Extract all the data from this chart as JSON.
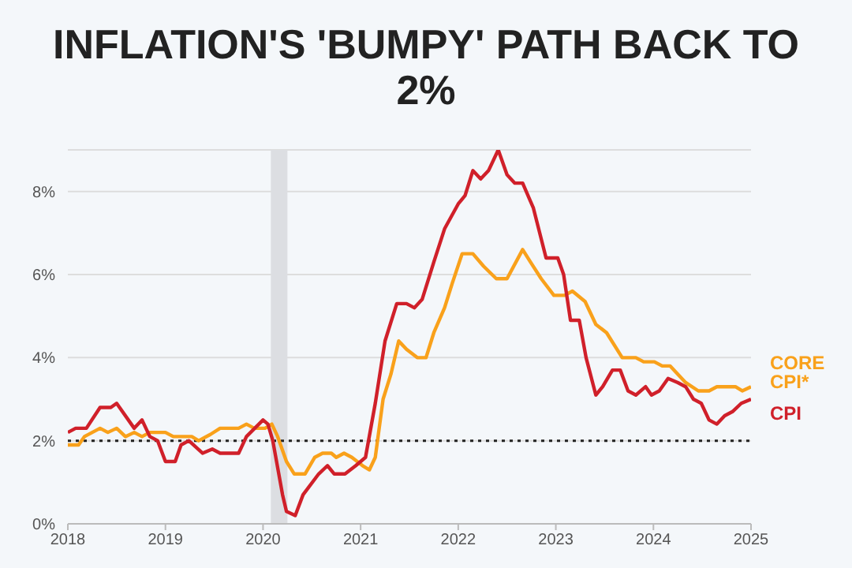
{
  "chart_data": {
    "type": "line",
    "title": "INFLATION'S 'BUMPY' PATH BACK TO 2%",
    "series": [
      {
        "name": "CORE CPI*",
        "color": "#f9a11b",
        "x": [
          2018.0,
          2018.11,
          2018.17,
          2018.33,
          2018.41,
          2018.5,
          2018.59,
          2018.68,
          2018.76,
          2018.84,
          2019.0,
          2019.08,
          2019.27,
          2019.34,
          2019.46,
          2019.56,
          2019.75,
          2019.83,
          2019.91,
          2020.02,
          2020.09,
          2020.15,
          2020.24,
          2020.32,
          2020.43,
          2020.53,
          2020.61,
          2020.7,
          2020.75,
          2020.83,
          2020.91,
          2021.02,
          2021.09,
          2021.15,
          2021.23,
          2021.31,
          2021.39,
          2021.47,
          2021.58,
          2021.67,
          2021.75,
          2021.86,
          2021.94,
          2022.04,
          2022.15,
          2022.26,
          2022.39,
          2022.5,
          2022.66,
          2022.74,
          2022.85,
          2022.98,
          2023.09,
          2023.17,
          2023.3,
          2023.41,
          2023.52,
          2023.68,
          2023.82,
          2023.9,
          2024.01,
          2024.09,
          2024.17,
          2024.33,
          2024.46,
          2024.57,
          2024.65,
          2024.84,
          2024.91,
          2025.0
        ],
        "values": [
          1.9,
          1.9,
          2.1,
          2.3,
          2.2,
          2.3,
          2.1,
          2.2,
          2.1,
          2.2,
          2.2,
          2.1,
          2.1,
          2.0,
          2.15,
          2.3,
          2.3,
          2.4,
          2.3,
          2.3,
          2.4,
          2.1,
          1.5,
          1.2,
          1.2,
          1.6,
          1.7,
          1.7,
          1.6,
          1.7,
          1.6,
          1.4,
          1.3,
          1.6,
          3.0,
          3.6,
          4.4,
          4.2,
          4.0,
          4.0,
          4.6,
          5.2,
          5.8,
          6.5,
          6.5,
          6.2,
          5.9,
          5.9,
          6.6,
          6.3,
          5.9,
          5.5,
          5.5,
          5.6,
          5.35,
          4.8,
          4.6,
          4.0,
          4.0,
          3.9,
          3.9,
          3.8,
          3.8,
          3.4,
          3.2,
          3.2,
          3.3,
          3.3,
          3.2,
          3.3
        ]
      },
      {
        "name": "CPI",
        "color": "#d0202a",
        "x": [
          2018.0,
          2018.08,
          2018.19,
          2018.33,
          2018.44,
          2018.5,
          2018.68,
          2018.76,
          2018.84,
          2018.92,
          2019.0,
          2019.1,
          2019.16,
          2019.24,
          2019.38,
          2019.48,
          2019.56,
          2019.75,
          2019.83,
          2020.0,
          2020.05,
          2020.1,
          2020.2,
          2020.24,
          2020.33,
          2020.41,
          2020.57,
          2020.66,
          2020.73,
          2020.84,
          2020.95,
          2021.05,
          2021.15,
          2021.25,
          2021.37,
          2021.47,
          2021.55,
          2021.63,
          2021.75,
          2021.86,
          2022.0,
          2022.07,
          2022.15,
          2022.23,
          2022.31,
          2022.41,
          2022.5,
          2022.58,
          2022.66,
          2022.77,
          2022.9,
          2023.02,
          2023.08,
          2023.15,
          2023.24,
          2023.31,
          2023.41,
          2023.48,
          2023.58,
          2023.66,
          2023.74,
          2023.82,
          2023.92,
          2023.98,
          2024.06,
          2024.15,
          2024.25,
          2024.33,
          2024.41,
          2024.49,
          2024.57,
          2024.65,
          2024.73,
          2024.81,
          2024.9,
          2025.0
        ],
        "values": [
          2.2,
          2.3,
          2.3,
          2.8,
          2.8,
          2.9,
          2.3,
          2.5,
          2.1,
          2.0,
          1.5,
          1.5,
          1.9,
          2.0,
          1.7,
          1.8,
          1.7,
          1.7,
          2.1,
          2.5,
          2.4,
          2.0,
          0.7,
          0.3,
          0.2,
          0.7,
          1.2,
          1.4,
          1.2,
          1.2,
          1.4,
          1.6,
          2.9,
          4.4,
          5.3,
          5.3,
          5.2,
          5.4,
          6.3,
          7.1,
          7.7,
          7.9,
          8.5,
          8.3,
          8.5,
          9.0,
          8.4,
          8.2,
          8.2,
          7.6,
          6.4,
          6.4,
          6.0,
          4.9,
          4.9,
          4.0,
          3.1,
          3.3,
          3.7,
          3.7,
          3.2,
          3.1,
          3.3,
          3.1,
          3.2,
          3.5,
          3.4,
          3.3,
          3.0,
          2.9,
          2.5,
          2.4,
          2.6,
          2.7,
          2.9,
          3.0
        ]
      }
    ],
    "xlim": [
      2018,
      2025
    ],
    "xticks": [
      2018,
      2019,
      2020,
      2021,
      2022,
      2023,
      2024,
      2025
    ],
    "ylim": [
      0,
      9
    ],
    "yticks": [
      {
        "value": 0,
        "label": "0%"
      },
      {
        "value": 2,
        "label": "2%"
      },
      {
        "value": 4,
        "label": "4%"
      },
      {
        "value": 6,
        "label": "6%"
      },
      {
        "value": 8,
        "label": "8%"
      }
    ],
    "grid": "y",
    "legend": false,
    "marker": "none",
    "line_style": "solid",
    "ref_lines": [
      {
        "axis": "y",
        "value": 2,
        "color": "#222222",
        "line_style": "dotted"
      }
    ],
    "bands": [
      {
        "axis": "x",
        "from": 2020.08,
        "to": 2020.25,
        "color": "#dcdee2"
      }
    ]
  }
}
